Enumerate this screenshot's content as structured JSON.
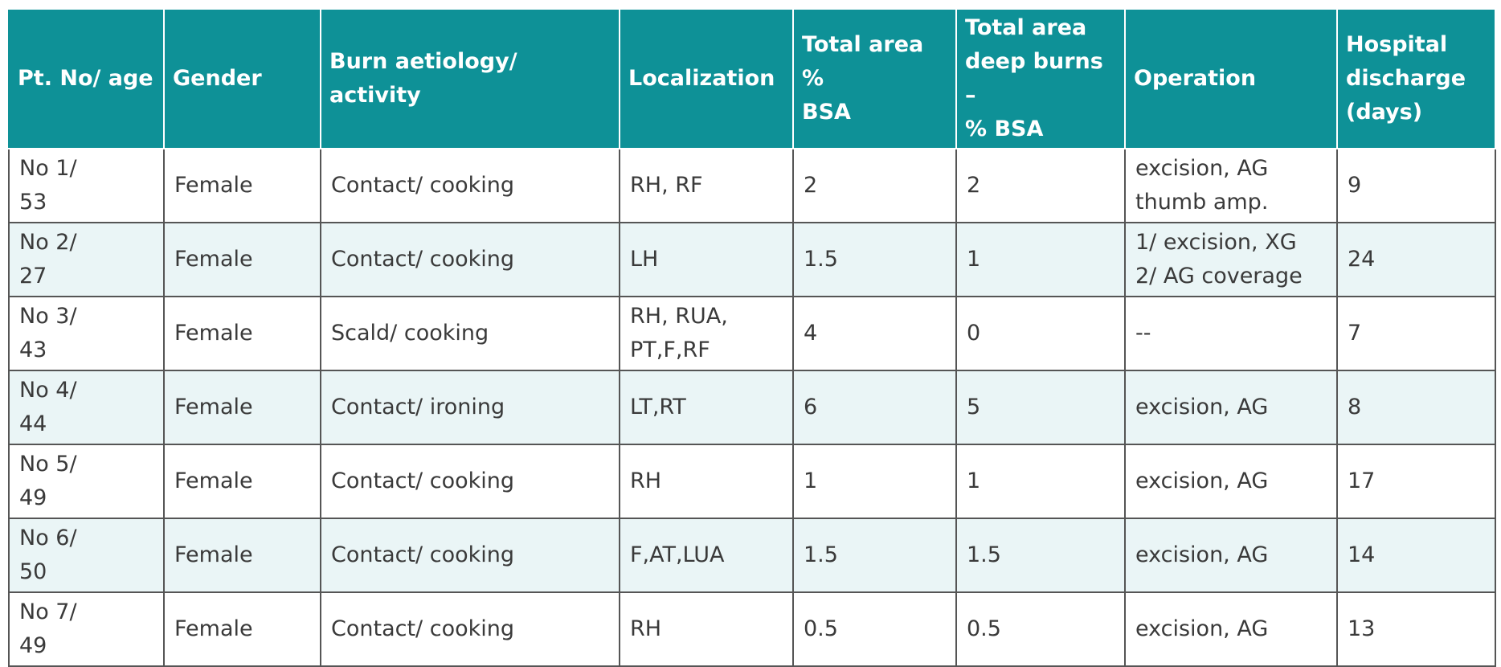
{
  "table": {
    "headers": [
      "Pt. No/ age",
      "Gender",
      "Burn aetiology/ activity",
      "Localization",
      "Total area %\nBSA",
      "Total area\ndeep burns –\n% BSA",
      "Operation",
      "Hospital\ndischarge\n(days)"
    ],
    "rows": [
      [
        "No 1/\n53",
        "Female",
        "Contact/ cooking",
        "RH, RF",
        "2",
        "2",
        "excision, AG\nthumb amp.",
        "9"
      ],
      [
        "No 2/\n27",
        "Female",
        "Contact/ cooking",
        "LH",
        "1.5",
        "1",
        "1/ excision, XG\n2/ AG coverage",
        "24"
      ],
      [
        "No 3/\n43",
        "Female",
        "Scald/ cooking",
        "RH, RUA,\nPT,F,RF",
        "4",
        "0",
        "--",
        "7"
      ],
      [
        "No 4/\n44",
        "Female",
        "Contact/ ironing",
        "LT,RT",
        "6",
        "5",
        "excision, AG",
        "8"
      ],
      [
        "No 5/\n49",
        "Female",
        "Contact/ cooking",
        "RH",
        "1",
        "1",
        "excision, AG",
        "17"
      ],
      [
        "No 6/\n50",
        "Female",
        "Contact/ cooking",
        "F,AT,LUA",
        "1.5",
        "1.5",
        "excision, AG",
        "14"
      ],
      [
        "No 7/\n49",
        "Female",
        "Contact/ cooking",
        "RH",
        "0.5",
        "0.5",
        "excision, AG",
        "13"
      ]
    ]
  },
  "colors": {
    "header_bg": "#0e9197",
    "header_text": "#ffffff",
    "alt_row_bg": "#eaf5f6",
    "border": "#555555"
  }
}
